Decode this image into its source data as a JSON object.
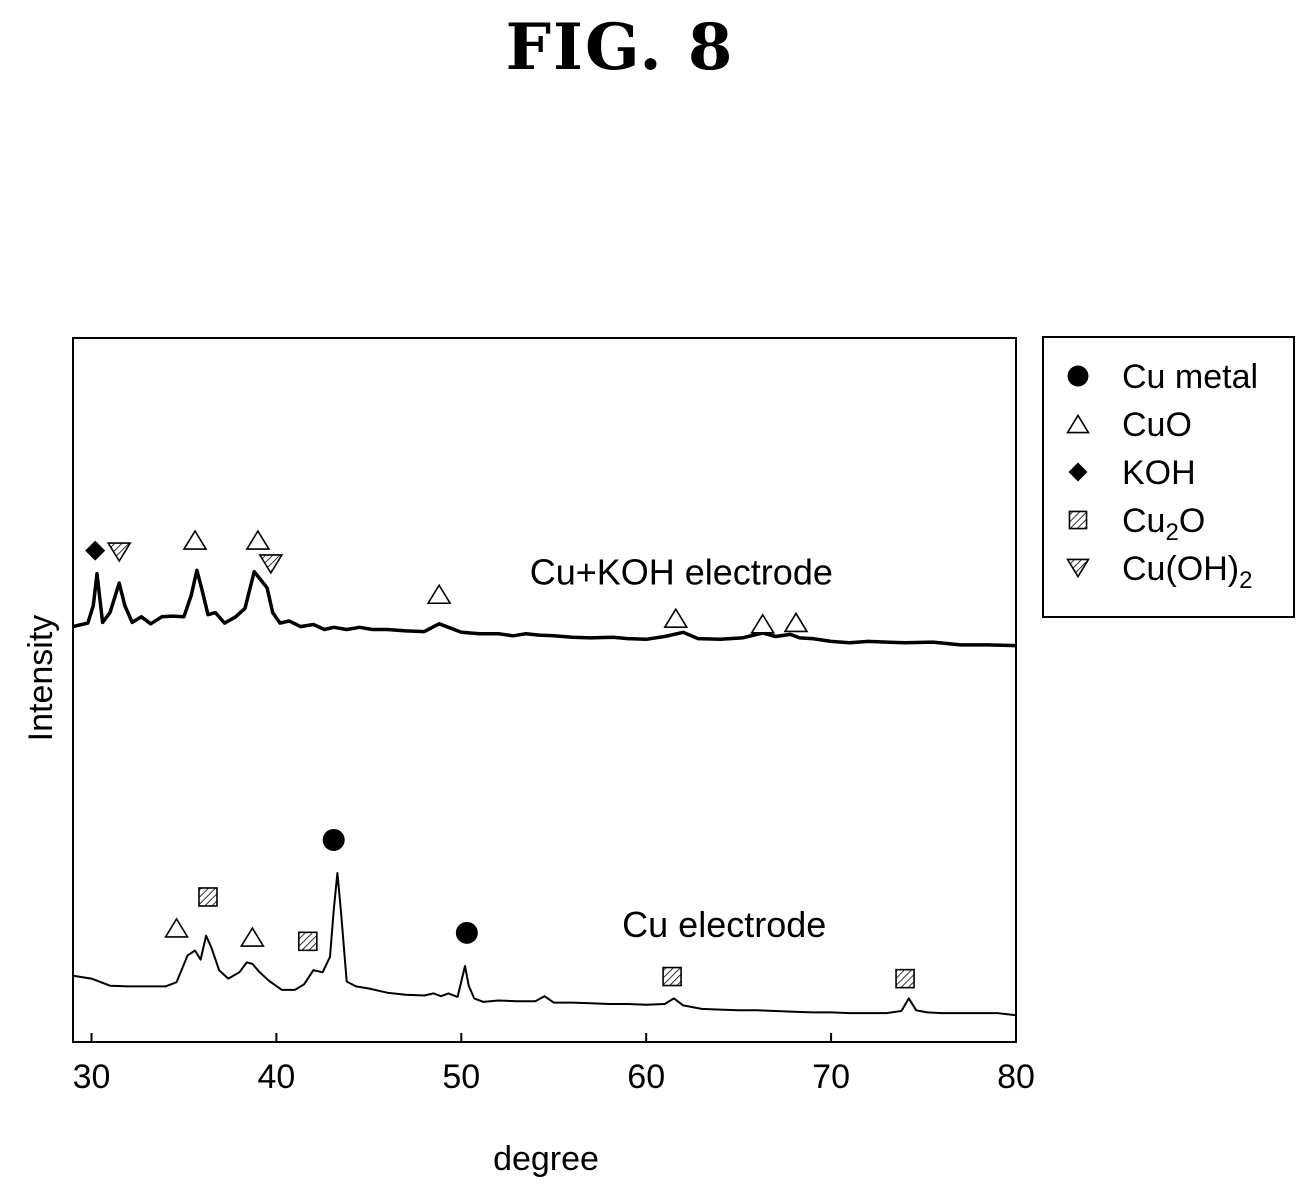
{
  "figure": {
    "title": "FIG. 8"
  },
  "chart_data": {
    "type": "line",
    "title": "",
    "xlabel": "degree",
    "ylabel": "Intensity",
    "xlim": [
      29,
      80
    ],
    "ylim": [
      0,
      100
    ],
    "xticks": [
      30,
      40,
      50,
      60,
      70,
      80
    ],
    "yticks_shown": false,
    "legend_position": "outside-top-right",
    "legend": [
      {
        "marker": "circle",
        "label": "Cu metal"
      },
      {
        "marker": "triangle-up",
        "label": "CuO"
      },
      {
        "marker": "diamond",
        "label": "KOH"
      },
      {
        "marker": "hatched-square",
        "label": "Cu",
        "label_sub": "2",
        "label_after": "O"
      },
      {
        "marker": "triangle-down",
        "label": "Cu(OH)",
        "label_sub": "2",
        "label_after": ""
      }
    ],
    "series": [
      {
        "name": "Cu+KOH electrode",
        "stroke_width": 3.5,
        "x": [
          29,
          29.8,
          30.1,
          30.3,
          30.6,
          31.0,
          31.5,
          31.8,
          32.2,
          32.7,
          33.2,
          33.8,
          34.4,
          35.0,
          35.4,
          35.7,
          36.0,
          36.3,
          36.7,
          37.2,
          37.8,
          38.3,
          38.8,
          39.2,
          39.5,
          39.8,
          40.2,
          40.7,
          41.3,
          42.0,
          42.6,
          43.1,
          43.8,
          44.5,
          45.2,
          46.0,
          47.0,
          48.0,
          48.8,
          49.3,
          50.0,
          51.0,
          52.0,
          52.8,
          53.5,
          54.2,
          55.0,
          56.0,
          57.0,
          58.2,
          59.0,
          60.0,
          61.0,
          62.0,
          62.8,
          64.0,
          65.2,
          66.3,
          67.0,
          67.8,
          68.3,
          69.0,
          70.0,
          71.0,
          72.0,
          73.0,
          74.0,
          75.5,
          77.0,
          78.5,
          80.0
        ],
        "y": [
          59.0,
          59.5,
          62.0,
          66.5,
          59.6,
          61.0,
          65.2,
          62.0,
          59.6,
          60.4,
          59.4,
          60.4,
          60.5,
          60.4,
          63.5,
          67.0,
          64.0,
          60.7,
          61.0,
          59.5,
          60.4,
          61.6,
          66.8,
          65.5,
          64.5,
          61.0,
          59.5,
          59.8,
          59.0,
          59.3,
          58.6,
          58.9,
          58.6,
          58.9,
          58.6,
          58.6,
          58.4,
          58.3,
          59.4,
          58.9,
          58.2,
          58.0,
          58.0,
          57.7,
          58.0,
          57.8,
          57.7,
          57.5,
          57.4,
          57.5,
          57.3,
          57.2,
          57.6,
          58.2,
          57.3,
          57.2,
          57.4,
          58.1,
          57.6,
          57.9,
          57.4,
          57.3,
          56.9,
          56.7,
          56.9,
          56.8,
          56.7,
          56.8,
          56.4,
          56.4,
          56.3
        ]
      },
      {
        "name": "Cu electrode",
        "stroke_width": 2,
        "x": [
          29,
          30.0,
          31.0,
          32.0,
          33.0,
          34.0,
          34.6,
          35.2,
          35.6,
          35.9,
          36.2,
          36.5,
          36.9,
          37.4,
          38.0,
          38.4,
          38.7,
          39.1,
          39.6,
          40.3,
          41.0,
          41.5,
          42.0,
          42.5,
          42.9,
          43.1,
          43.3,
          43.5,
          43.8,
          44.3,
          45.0,
          46.0,
          47.0,
          48.0,
          48.5,
          48.9,
          49.3,
          49.8,
          50.2,
          50.4,
          50.7,
          51.2,
          52.0,
          53.0,
          54.0,
          54.5,
          55.0,
          56.0,
          57.0,
          58.0,
          59.0,
          60.0,
          61.0,
          61.5,
          62.0,
          63.0,
          64.0,
          65.0,
          66.0,
          67.0,
          68.0,
          69.0,
          70.0,
          71.0,
          72.0,
          73.0,
          73.8,
          74.2,
          74.6,
          75.2,
          76.0,
          77.0,
          78.0,
          79.0,
          80.0
        ],
        "y": [
          9.4,
          9.0,
          8.0,
          7.9,
          7.9,
          7.9,
          8.5,
          12.3,
          13.0,
          11.7,
          15.1,
          13.3,
          10.2,
          9.0,
          9.9,
          11.3,
          11.1,
          9.9,
          8.7,
          7.4,
          7.4,
          8.2,
          10.2,
          9.9,
          12.1,
          18.7,
          24.0,
          18.3,
          8.6,
          7.9,
          7.6,
          7.0,
          6.7,
          6.6,
          6.9,
          6.5,
          6.9,
          6.4,
          10.8,
          8.0,
          6.2,
          5.7,
          5.9,
          5.8,
          5.8,
          6.5,
          5.6,
          5.6,
          5.5,
          5.4,
          5.4,
          5.3,
          5.4,
          6.2,
          5.2,
          4.7,
          4.6,
          4.5,
          4.5,
          4.4,
          4.3,
          4.2,
          4.2,
          4.1,
          4.1,
          4.1,
          4.4,
          6.2,
          4.5,
          4.2,
          4.1,
          4.1,
          4.1,
          4.1,
          3.8
        ]
      }
    ],
    "peak_markers": [
      {
        "marker": "diamond",
        "x": 30.2,
        "y": 69.8
      },
      {
        "marker": "triangle-down",
        "x": 31.5,
        "y": 69.6
      },
      {
        "marker": "triangle-up",
        "x": 35.6,
        "y": 71.3
      },
      {
        "marker": "triangle-up",
        "x": 39.0,
        "y": 71.3
      },
      {
        "marker": "triangle-down",
        "x": 39.7,
        "y": 67.9
      },
      {
        "marker": "triangle-up",
        "x": 48.8,
        "y": 63.6
      },
      {
        "marker": "triangle-up",
        "x": 61.6,
        "y": 60.2
      },
      {
        "marker": "triangle-up",
        "x": 66.3,
        "y": 59.4
      },
      {
        "marker": "triangle-up",
        "x": 68.1,
        "y": 59.6
      },
      {
        "marker": "circle",
        "x": 43.1,
        "y": 28.7
      },
      {
        "marker": "hatched-square",
        "x": 36.3,
        "y": 20.6
      },
      {
        "marker": "triangle-up",
        "x": 34.6,
        "y": 16.2
      },
      {
        "marker": "triangle-up",
        "x": 38.7,
        "y": 14.9
      },
      {
        "marker": "hatched-square",
        "x": 41.7,
        "y": 14.3
      },
      {
        "marker": "circle",
        "x": 50.3,
        "y": 15.5
      },
      {
        "marker": "hatched-square",
        "x": 61.4,
        "y": 9.3
      },
      {
        "marker": "hatched-square",
        "x": 74.0,
        "y": 9.0
      }
    ],
    "annotations": [
      {
        "text": "Cu+KOH electrode",
        "x": 53.7,
        "y": 65.0
      },
      {
        "text": "Cu electrode",
        "x": 58.7,
        "y": 14.9
      }
    ]
  }
}
